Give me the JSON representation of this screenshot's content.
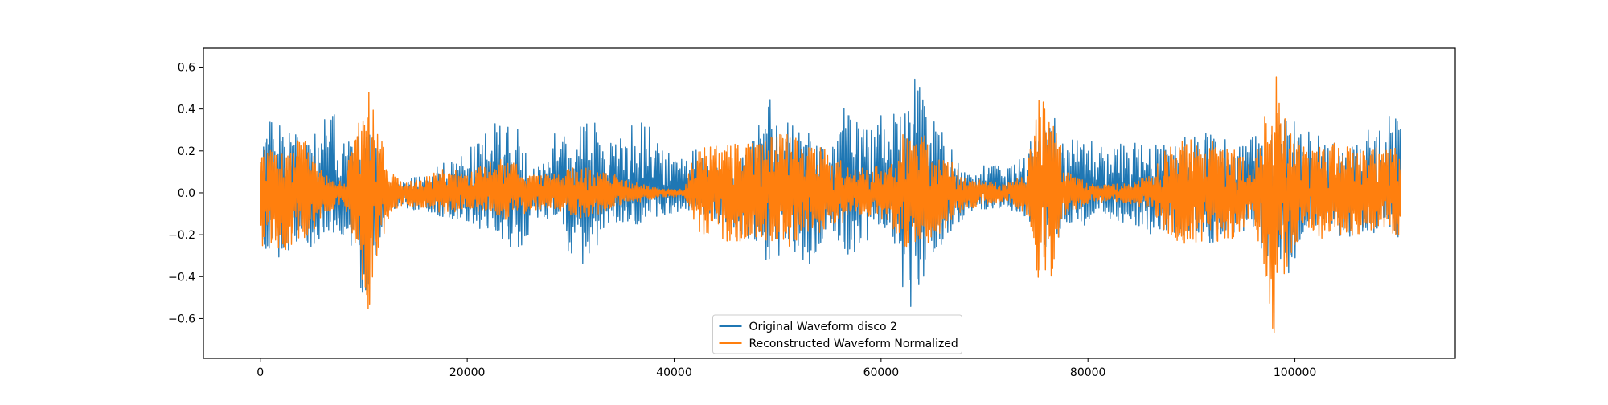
{
  "chart_data": {
    "type": "line",
    "title": "",
    "xlabel": "",
    "ylabel": "",
    "xlim": [
      -5500,
      115500
    ],
    "ylim": [
      -0.79,
      0.69
    ],
    "x_ticks": [
      0,
      20000,
      40000,
      60000,
      80000,
      100000
    ],
    "x_tick_labels": [
      "0",
      "20000",
      "40000",
      "60000",
      "80000",
      "100000"
    ],
    "y_ticks": [
      -0.6,
      -0.4,
      -0.2,
      0.0,
      0.2,
      0.4,
      0.6
    ],
    "y_tick_labels": [
      "−0.6",
      "−0.4",
      "−0.2",
      "0.0",
      "0.2",
      "0.4",
      "0.6"
    ],
    "grid": false,
    "legend_position": "lower center",
    "sample_count": 110250,
    "series": [
      {
        "name": "Original Waveform disco 2",
        "color": "#1f77b4",
        "envelope_x": [
          0,
          1500,
          3000,
          5000,
          7000,
          9000,
          10000,
          11000,
          12000,
          13500,
          16000,
          18000,
          20000,
          22000,
          23500,
          25000,
          26500,
          28000,
          29000,
          29600,
          30500,
          31500,
          33000,
          35000,
          37000,
          38000,
          40000,
          42000,
          44000,
          46000,
          48000,
          49000,
          50000,
          51500,
          53000,
          55000,
          56500,
          57500,
          59000,
          61000,
          62500,
          63300,
          64500,
          66000,
          68000,
          70000,
          72000,
          74000,
          75000,
          76500,
          78000,
          80000,
          82000,
          84000,
          86000,
          88000,
          90000,
          92000,
          94000,
          96000,
          97500,
          99000,
          101000,
          103000,
          105000,
          107000,
          108500,
          110000
        ],
        "envelope_upper": [
          0.3,
          0.37,
          0.33,
          0.3,
          0.4,
          0.22,
          0.35,
          0.3,
          0.07,
          0.05,
          0.1,
          0.15,
          0.2,
          0.3,
          0.38,
          0.3,
          0.12,
          0.15,
          0.48,
          0.22,
          0.2,
          0.53,
          0.2,
          0.3,
          0.35,
          0.3,
          0.15,
          0.25,
          0.12,
          0.14,
          0.3,
          0.48,
          0.37,
          0.34,
          0.3,
          0.18,
          0.42,
          0.35,
          0.3,
          0.48,
          0.37,
          0.62,
          0.4,
          0.29,
          0.1,
          0.14,
          0.12,
          0.18,
          0.35,
          0.4,
          0.25,
          0.27,
          0.2,
          0.26,
          0.22,
          0.25,
          0.3,
          0.32,
          0.22,
          0.27,
          0.3,
          0.38,
          0.3,
          0.28,
          0.2,
          0.3,
          0.38,
          0.38
        ],
        "envelope_lower": [
          -0.26,
          -0.34,
          -0.28,
          -0.26,
          -0.21,
          -0.28,
          -0.53,
          -0.37,
          -0.1,
          -0.07,
          -0.09,
          -0.12,
          -0.14,
          -0.19,
          -0.22,
          -0.33,
          -0.12,
          -0.15,
          -0.26,
          -0.42,
          -0.18,
          -0.43,
          -0.18,
          -0.18,
          -0.14,
          -0.12,
          -0.1,
          -0.08,
          -0.15,
          -0.18,
          -0.25,
          -0.35,
          -0.3,
          -0.29,
          -0.35,
          -0.16,
          -0.28,
          -0.33,
          -0.2,
          -0.22,
          -0.55,
          -0.56,
          -0.34,
          -0.25,
          -0.12,
          -0.08,
          -0.07,
          -0.12,
          -0.22,
          -0.3,
          -0.15,
          -0.16,
          -0.13,
          -0.15,
          -0.2,
          -0.18,
          -0.23,
          -0.24,
          -0.19,
          -0.18,
          -0.44,
          -0.44,
          -0.2,
          -0.18,
          -0.22,
          -0.2,
          -0.21,
          -0.27
        ]
      },
      {
        "name": "Reconstructed Waveform Normalized",
        "color": "#ff7f0e",
        "envelope_x": [
          0,
          1500,
          3000,
          4500,
          6000,
          8000,
          9500,
          10500,
          11500,
          12500,
          14000,
          16000,
          18000,
          20000,
          22000,
          24000,
          25500,
          27000,
          29000,
          31000,
          33000,
          35000,
          37000,
          39000,
          41000,
          42000,
          44000,
          46000,
          48000,
          49500,
          51000,
          53000,
          55000,
          57000,
          59000,
          61000,
          62000,
          63000,
          64000,
          66000,
          68000,
          70000,
          72000,
          74000,
          75200,
          76500,
          78000,
          80000,
          82000,
          84000,
          86000,
          88000,
          90000,
          92000,
          94000,
          96000,
          97200,
          98000,
          99000,
          100500,
          102000,
          104000,
          106000,
          108000,
          110000
        ],
        "envelope_upper": [
          0.25,
          0.2,
          0.22,
          0.3,
          0.1,
          0.05,
          0.35,
          0.58,
          0.3,
          0.1,
          0.05,
          0.08,
          0.12,
          0.1,
          0.14,
          0.18,
          0.1,
          0.08,
          0.1,
          0.14,
          0.1,
          0.08,
          0.04,
          0.02,
          0.02,
          0.2,
          0.24,
          0.24,
          0.24,
          0.28,
          0.3,
          0.24,
          0.2,
          0.12,
          0.12,
          0.14,
          0.32,
          0.24,
          0.28,
          0.2,
          0.08,
          0.06,
          0.04,
          0.1,
          0.46,
          0.4,
          0.1,
          0.05,
          0.04,
          0.05,
          0.08,
          0.26,
          0.26,
          0.28,
          0.22,
          0.12,
          0.4,
          0.62,
          0.4,
          0.22,
          0.22,
          0.24,
          0.2,
          0.22,
          0.22
        ],
        "envelope_lower": [
          -0.25,
          -0.28,
          -0.28,
          -0.25,
          -0.1,
          -0.06,
          -0.3,
          -0.65,
          -0.28,
          -0.1,
          -0.06,
          -0.08,
          -0.1,
          -0.08,
          -0.1,
          -0.14,
          -0.1,
          -0.08,
          -0.1,
          -0.12,
          -0.1,
          -0.06,
          -0.04,
          -0.02,
          -0.02,
          -0.18,
          -0.22,
          -0.24,
          -0.22,
          -0.24,
          -0.26,
          -0.2,
          -0.18,
          -0.12,
          -0.12,
          -0.14,
          -0.36,
          -0.24,
          -0.26,
          -0.18,
          -0.08,
          -0.06,
          -0.04,
          -0.1,
          -0.47,
          -0.4,
          -0.1,
          -0.05,
          -0.04,
          -0.05,
          -0.08,
          -0.24,
          -0.26,
          -0.26,
          -0.22,
          -0.12,
          -0.44,
          -0.72,
          -0.4,
          -0.2,
          -0.22,
          -0.22,
          -0.2,
          -0.2,
          -0.22
        ]
      }
    ]
  }
}
